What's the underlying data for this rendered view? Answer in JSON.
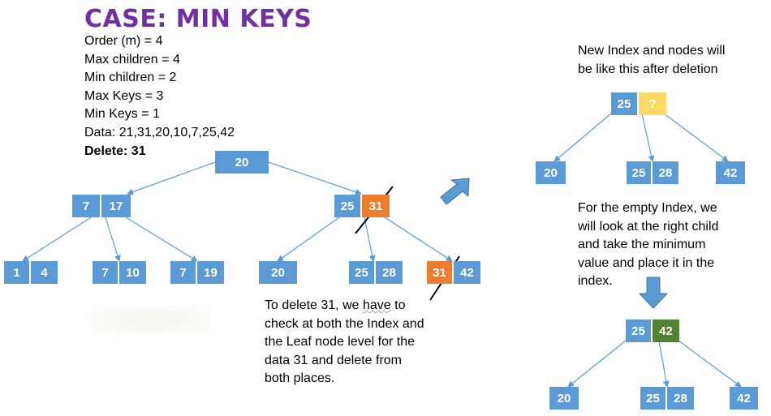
{
  "title": "CASE: MIN KEYS",
  "info": {
    "order": "Order (m) = 4",
    "max_children": "Max children = 4",
    "min_children": "Min children = 2",
    "max_keys": "Max Keys = 3",
    "min_keys": "Min Keys = 1",
    "data": "Data: 21,31,20,10,7,25,42",
    "delete": "Delete: 31"
  },
  "left_tree": {
    "root": [
      "20"
    ],
    "index_left": [
      "7",
      "17"
    ],
    "index_right": [
      "25",
      "31"
    ],
    "leaves": [
      [
        "1",
        "4"
      ],
      [
        "7",
        "10"
      ],
      [
        "7",
        "19"
      ],
      [
        "20"
      ],
      [
        "25",
        "28"
      ],
      [
        "31",
        "42"
      ]
    ]
  },
  "right_top_tree": {
    "index": [
      "25",
      "?"
    ],
    "leaves": [
      [
        "20"
      ],
      [
        "25",
        "28"
      ],
      [
        "42"
      ]
    ]
  },
  "right_bottom_tree": {
    "index": [
      "25",
      "42"
    ],
    "leaves": [
      [
        "20"
      ],
      [
        "25",
        "28"
      ],
      [
        "42"
      ]
    ]
  },
  "captions": {
    "new_index_pre": "New Index and nodes will",
    "new_index_post": "be like this after deletion",
    "empty_index": "For the empty Index, we will look at the right child and take the minimum value and place it in the index.",
    "delete_pre": "To delete 31, we ",
    "delete_squiggle": "have",
    "delete_post": " to check at both the Index and the Leaf node level for the data 31 and delete from both places."
  },
  "colors": {
    "node_blue": "#5b9bd5",
    "deleted_orange": "#ed7d31",
    "empty_yellow": "#ffd966",
    "filled_green": "#548235",
    "title_purple": "#7030a0",
    "line_blue": "#5b9bd5"
  }
}
